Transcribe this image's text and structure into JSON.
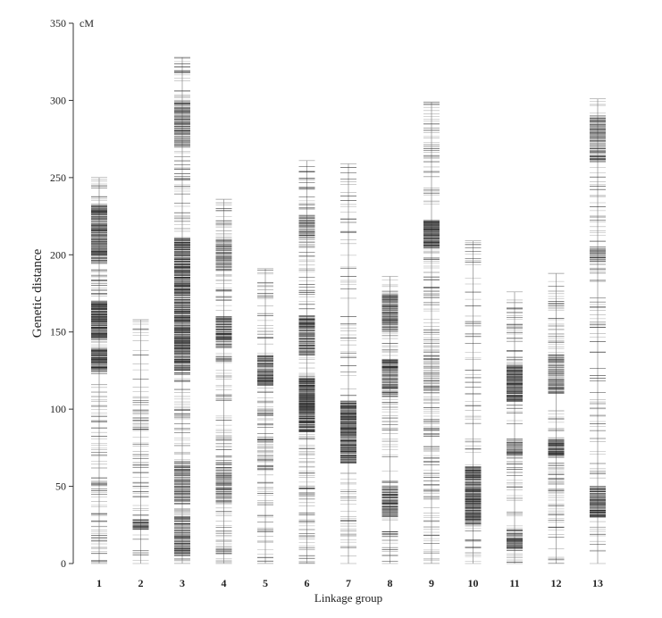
{
  "chart_data": {
    "type": "linkage-map",
    "title": "",
    "xlabel": "Linkage  group",
    "ylabel": "Genetic distance",
    "yunit": "cM",
    "ylim": [
      0,
      350
    ],
    "yticks": [
      0,
      50,
      100,
      150,
      200,
      250,
      300,
      350
    ],
    "grid": false,
    "legend": "none",
    "colors": {
      "marker": "#1a1a1a",
      "chromosome": "#999999",
      "axis": "#333333"
    },
    "groups": [
      {
        "name": "1",
        "length": 250,
        "seed": 11,
        "density": [
          [
            0,
            250,
            0.7
          ],
          [
            125,
            140,
            3.5
          ],
          [
            145,
            170,
            4
          ],
          [
            195,
            232,
            3
          ]
        ]
      },
      {
        "name": "2",
        "length": 158,
        "seed": 22,
        "density": [
          [
            0,
            158,
            0.45
          ],
          [
            22,
            28,
            3.5
          ],
          [
            85,
            100,
            1.2
          ]
        ]
      },
      {
        "name": "3",
        "length": 328,
        "seed": 33,
        "density": [
          [
            0,
            328,
            0.7
          ],
          [
            5,
            30,
            2.5
          ],
          [
            40,
            65,
            2
          ],
          [
            125,
            210,
            3.5
          ],
          [
            270,
            300,
            2
          ]
        ]
      },
      {
        "name": "4",
        "length": 236,
        "seed": 44,
        "density": [
          [
            0,
            236,
            0.75
          ],
          [
            140,
            160,
            3
          ],
          [
            190,
            210,
            2
          ],
          [
            40,
            60,
            1.8
          ]
        ]
      },
      {
        "name": "5",
        "length": 191,
        "seed": 55,
        "density": [
          [
            0,
            191,
            0.6
          ],
          [
            115,
            135,
            3
          ],
          [
            60,
            80,
            1.5
          ]
        ]
      },
      {
        "name": "6",
        "length": 261,
        "seed": 66,
        "density": [
          [
            0,
            261,
            0.55
          ],
          [
            85,
            120,
            4
          ],
          [
            135,
            160,
            3
          ],
          [
            210,
            225,
            2.5
          ]
        ]
      },
      {
        "name": "7",
        "length": 259,
        "seed": 77,
        "density": [
          [
            0,
            259,
            0.35
          ],
          [
            65,
            105,
            4.5
          ],
          [
            15,
            30,
            1
          ]
        ]
      },
      {
        "name": "8",
        "length": 186,
        "seed": 88,
        "density": [
          [
            0,
            186,
            0.5
          ],
          [
            30,
            50,
            3
          ],
          [
            108,
            132,
            3
          ],
          [
            150,
            175,
            2.5
          ]
        ]
      },
      {
        "name": "9",
        "length": 299,
        "seed": 99,
        "density": [
          [
            0,
            299,
            0.65
          ],
          [
            205,
            222,
            4.5
          ],
          [
            110,
            140,
            1.5
          ]
        ]
      },
      {
        "name": "10",
        "length": 209,
        "seed": 110,
        "density": [
          [
            0,
            209,
            0.4
          ],
          [
            25,
            62,
            3.5
          ]
        ]
      },
      {
        "name": "11",
        "length": 176,
        "seed": 121,
        "density": [
          [
            0,
            176,
            0.55
          ],
          [
            105,
            128,
            4
          ],
          [
            8,
            22,
            2.5
          ],
          [
            70,
            80,
            2
          ]
        ]
      },
      {
        "name": "12",
        "length": 188,
        "seed": 132,
        "density": [
          [
            0,
            188,
            0.6
          ],
          [
            70,
            80,
            3.5
          ],
          [
            110,
            135,
            2
          ],
          [
            45,
            55,
            1.5
          ]
        ]
      },
      {
        "name": "13",
        "length": 301,
        "seed": 143,
        "density": [
          [
            0,
            301,
            0.45
          ],
          [
            30,
            50,
            3
          ],
          [
            260,
            290,
            2
          ],
          [
            195,
            205,
            2
          ]
        ]
      }
    ]
  }
}
